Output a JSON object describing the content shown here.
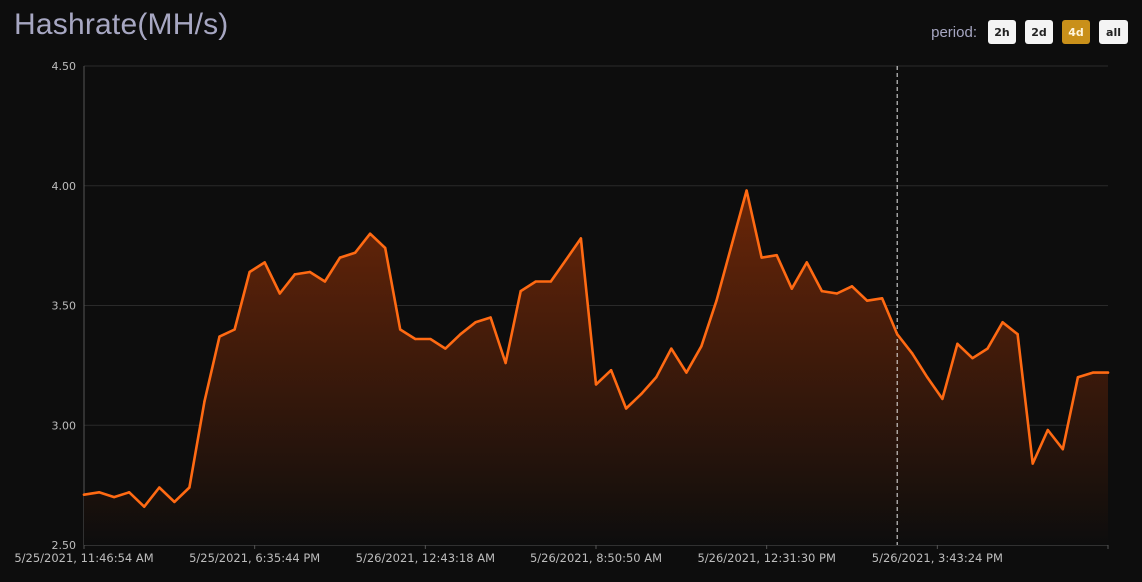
{
  "header": {
    "title": "Hashrate(MH/s)",
    "period_label": "period:",
    "period_options": [
      "2h",
      "2d",
      "4d",
      "all"
    ],
    "period_selected": "4d"
  },
  "colors": {
    "line": "#ff6a13",
    "fill_top": "#6b2608",
    "fill_bottom": "#0d0d0d",
    "grid": "#2a2a2a",
    "active_button": "#c9901a"
  },
  "chart_data": {
    "type": "area",
    "title": "Hashrate(MH/s)",
    "xlabel": "",
    "ylabel": "",
    "ylim": [
      2.5,
      4.5
    ],
    "y_ticks": [
      "2.50",
      "3.00",
      "3.50",
      "4.00",
      "4.50"
    ],
    "x_tick_labels": [
      "5/25/2021, 11:46:54 AM",
      "5/25/2021, 6:35:44 PM",
      "5/26/2021, 12:43:18 AM",
      "5/26/2021, 8:50:50 AM",
      "5/26/2021, 12:31:30 PM",
      "5/26/2021, 3:43:24 PM"
    ],
    "grid": true,
    "legend": "none",
    "hover_marker_index": 54,
    "series": [
      {
        "values": [
          2.71,
          2.72,
          2.7,
          2.72,
          2.66,
          2.74,
          2.68,
          2.74,
          3.1,
          3.37,
          3.4,
          3.64,
          3.68,
          3.55,
          3.63,
          3.64,
          3.6,
          3.7,
          3.72,
          3.8,
          3.74,
          3.4,
          3.36,
          3.36,
          3.32,
          3.38,
          3.43,
          3.45,
          3.26,
          3.56,
          3.6,
          3.6,
          3.69,
          3.78,
          3.17,
          3.23,
          3.07,
          3.13,
          3.2,
          3.32,
          3.22,
          3.33,
          3.52,
          3.75,
          3.98,
          3.7,
          3.71,
          3.57,
          3.68,
          3.56,
          3.55,
          3.58,
          3.52,
          3.53,
          3.38,
          3.3,
          3.2,
          3.11,
          3.34,
          3.28,
          3.32,
          3.43,
          3.38,
          2.84,
          2.98,
          2.9,
          3.2,
          3.22,
          3.22
        ]
      }
    ]
  }
}
